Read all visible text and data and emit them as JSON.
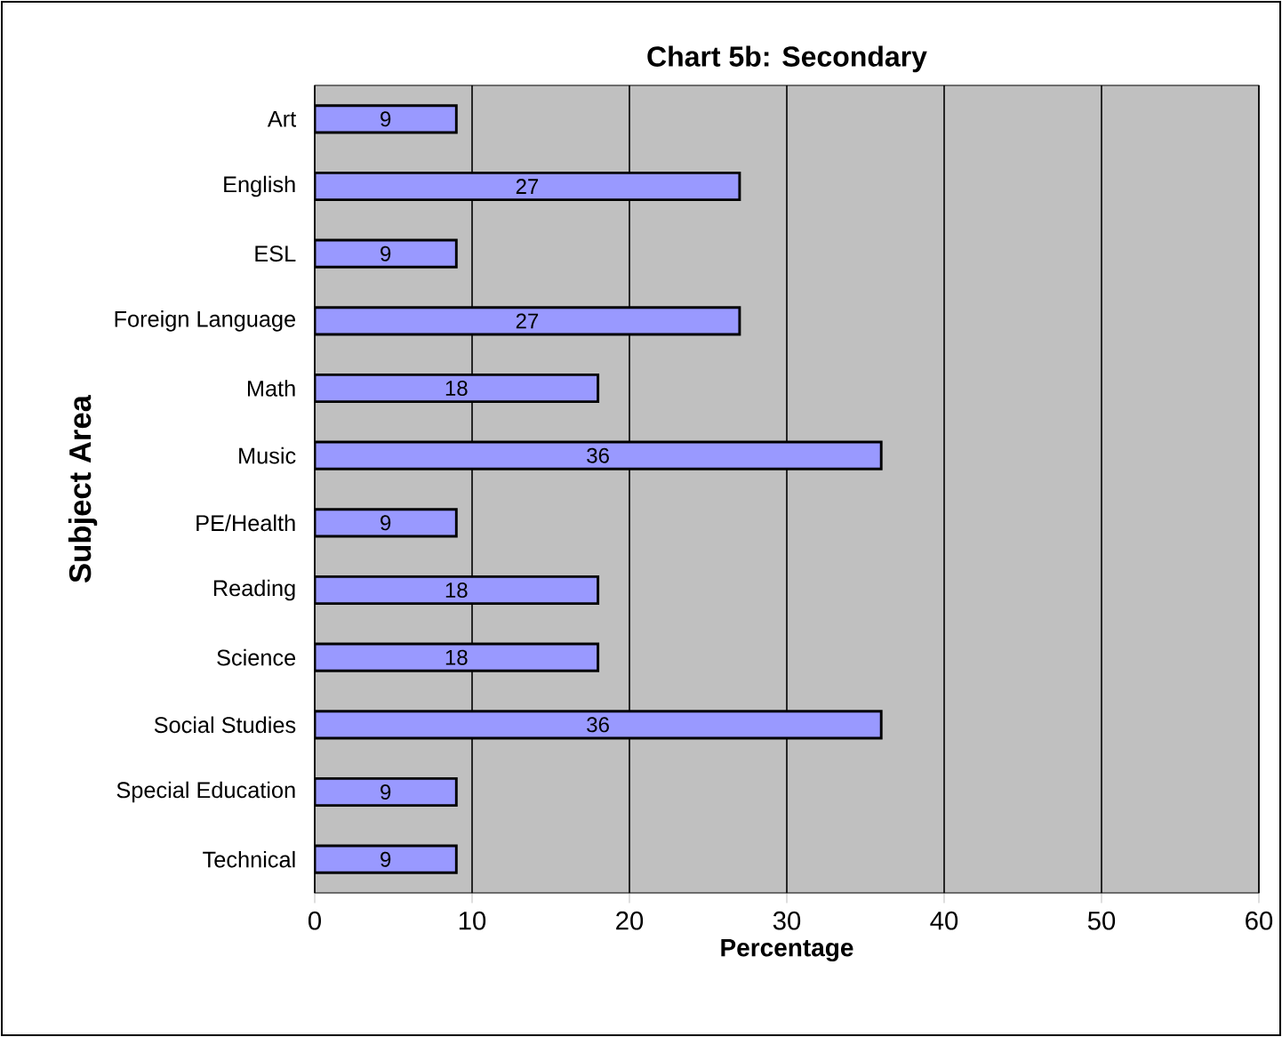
{
  "chart_data": {
    "type": "bar",
    "orientation": "horizontal",
    "title": "Chart 5b: Secondary",
    "xlabel": "Percentage",
    "ylabel": "Subject Area",
    "categories": [
      "Art",
      "English",
      "ESL",
      "Foreign Language",
      "Math",
      "Music",
      "PE/Health",
      "Reading",
      "Science",
      "Social Studies",
      "Special Education",
      "Technical"
    ],
    "values": [
      9,
      27,
      9,
      27,
      18,
      36,
      9,
      18,
      18,
      36,
      9,
      9
    ],
    "color": "#9999ff",
    "xlim": [
      0,
      60
    ],
    "xticks": [
      0,
      10,
      20,
      30,
      40,
      50,
      60
    ],
    "grid": "x",
    "data_labels": true
  }
}
